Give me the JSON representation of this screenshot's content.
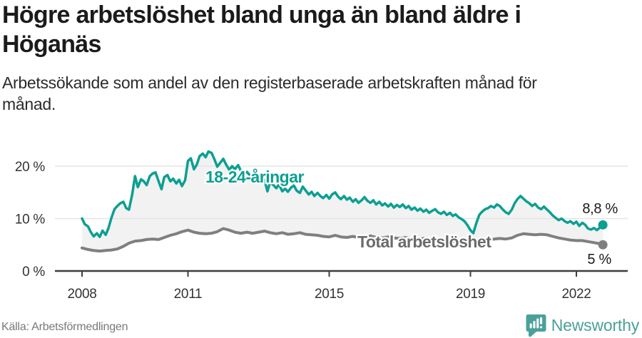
{
  "header": {
    "title_lines": [
      "Högre arbetslöshet bland unga än bland äldre i",
      "Höganäs"
    ],
    "subtitle_lines": [
      "Arbetssökande som andel av den registerbaserade arbetskraften månad för",
      "månad."
    ]
  },
  "footer": {
    "source": "Källa: Arbetsförmedlingen",
    "brand": "Newsworthy"
  },
  "colors": {
    "young_line": "#0c9f92",
    "total_line": "#7f7f7f",
    "total_label": "#6b6b6b",
    "band_fill": "#f2f2f2",
    "grid": "#e5e5e5",
    "axis": "#3d3d3d",
    "tick_text": "#333333",
    "end_label_text": "#1a1a1a",
    "brand_teal": "#4aa09a",
    "background": "#ffffff"
  },
  "chart_data": {
    "type": "line",
    "title": "Högre arbetslöshet bland unga än bland äldre i Höganäs",
    "subtitle": "Arbetssökande som andel av den registerbaserade arbetskraften månad för månad.",
    "x_unit": "decimal_year",
    "xlabel": "",
    "ylabel": "",
    "axis_x_range": [
      2007.2,
      2023.5
    ],
    "ylim": [
      0,
      25.8
    ],
    "grid": "horizontal",
    "legend": "inline-labels",
    "yticks": [
      {
        "value": 0,
        "label": "0 %"
      },
      {
        "value": 10,
        "label": "10 %"
      },
      {
        "value": 20,
        "label": "20 %"
      }
    ],
    "xticks": [
      {
        "value": 2008,
        "label": "2008"
      },
      {
        "value": 2011,
        "label": "2011"
      },
      {
        "value": 2015,
        "label": "2015"
      },
      {
        "value": 2019,
        "label": "2019"
      },
      {
        "value": 2022,
        "label": "2022"
      }
    ],
    "band_between_series": true,
    "series": [
      {
        "name": "18-24-åringar",
        "color": "#0c9f92",
        "end_label": "8,8 %",
        "last_value": 8.8,
        "points": [
          [
            2008.0,
            10.0
          ],
          [
            2008.08,
            8.9
          ],
          [
            2008.17,
            8.5
          ],
          [
            2008.25,
            7.4
          ],
          [
            2008.33,
            6.6
          ],
          [
            2008.42,
            7.2
          ],
          [
            2008.5,
            6.5
          ],
          [
            2008.58,
            7.7
          ],
          [
            2008.67,
            6.9
          ],
          [
            2008.75,
            8.2
          ],
          [
            2008.83,
            10.1
          ],
          [
            2008.92,
            11.8
          ],
          [
            2009.0,
            12.4
          ],
          [
            2009.08,
            12.9
          ],
          [
            2009.17,
            13.2
          ],
          [
            2009.25,
            12.0
          ],
          [
            2009.33,
            11.7
          ],
          [
            2009.42,
            14.6
          ],
          [
            2009.5,
            18.1
          ],
          [
            2009.58,
            16.0
          ],
          [
            2009.67,
            17.5
          ],
          [
            2009.75,
            17.1
          ],
          [
            2009.83,
            16.4
          ],
          [
            2009.92,
            18.1
          ],
          [
            2010.0,
            18.6
          ],
          [
            2010.08,
            18.8
          ],
          [
            2010.17,
            17.1
          ],
          [
            2010.25,
            15.6
          ],
          [
            2010.33,
            17.9
          ],
          [
            2010.42,
            18.3
          ],
          [
            2010.5,
            17.1
          ],
          [
            2010.58,
            17.6
          ],
          [
            2010.67,
            16.7
          ],
          [
            2010.75,
            17.4
          ],
          [
            2010.83,
            16.2
          ],
          [
            2010.92,
            17.3
          ],
          [
            2011.0,
            21.0
          ],
          [
            2011.08,
            21.5
          ],
          [
            2011.17,
            19.4
          ],
          [
            2011.25,
            20.3
          ],
          [
            2011.33,
            21.9
          ],
          [
            2011.42,
            22.4
          ],
          [
            2011.5,
            21.7
          ],
          [
            2011.58,
            22.8
          ],
          [
            2011.67,
            22.5
          ],
          [
            2011.75,
            21.3
          ],
          [
            2011.83,
            19.9
          ],
          [
            2011.92,
            20.7
          ],
          [
            2012.0,
            21.4
          ],
          [
            2012.08,
            20.3
          ],
          [
            2012.17,
            19.3
          ],
          [
            2012.25,
            20.0
          ],
          [
            2012.33,
            19.4
          ],
          [
            2012.42,
            20.2
          ],
          [
            2012.5,
            19.1
          ],
          [
            2012.58,
            18.5
          ],
          [
            2012.67,
            18.9
          ],
          [
            2012.75,
            18.3
          ],
          [
            2012.83,
            17.5
          ],
          [
            2012.92,
            16.9
          ],
          [
            2013.0,
            17.5
          ],
          [
            2013.08,
            17.8
          ],
          [
            2013.17,
            17.3
          ],
          [
            2013.25,
            15.2
          ],
          [
            2013.33,
            17.0
          ],
          [
            2013.42,
            16.4
          ],
          [
            2013.5,
            15.8
          ],
          [
            2013.58,
            16.5
          ],
          [
            2013.67,
            15.2
          ],
          [
            2013.75,
            15.7
          ],
          [
            2013.83,
            15.1
          ],
          [
            2013.92,
            15.9
          ],
          [
            2014.0,
            16.3
          ],
          [
            2014.08,
            15.3
          ],
          [
            2014.17,
            14.9
          ],
          [
            2014.25,
            16.1
          ],
          [
            2014.33,
            15.4
          ],
          [
            2014.42,
            14.6
          ],
          [
            2014.5,
            15.1
          ],
          [
            2014.58,
            14.3
          ],
          [
            2014.67,
            14.9
          ],
          [
            2014.75,
            14.3
          ],
          [
            2014.83,
            13.9
          ],
          [
            2014.92,
            14.5
          ],
          [
            2015.0,
            13.8
          ],
          [
            2015.08,
            14.6
          ],
          [
            2015.17,
            15.0
          ],
          [
            2015.25,
            14.2
          ],
          [
            2015.33,
            13.7
          ],
          [
            2015.42,
            14.3
          ],
          [
            2015.5,
            13.6
          ],
          [
            2015.58,
            14.0
          ],
          [
            2015.67,
            13.2
          ],
          [
            2015.75,
            13.7
          ],
          [
            2015.83,
            13.0
          ],
          [
            2015.92,
            13.5
          ],
          [
            2016.0,
            14.1
          ],
          [
            2016.08,
            13.4
          ],
          [
            2016.17,
            13.0
          ],
          [
            2016.25,
            13.5
          ],
          [
            2016.33,
            12.7
          ],
          [
            2016.42,
            13.2
          ],
          [
            2016.5,
            12.5
          ],
          [
            2016.58,
            12.9
          ],
          [
            2016.67,
            12.3
          ],
          [
            2016.75,
            12.8
          ],
          [
            2016.83,
            12.1
          ],
          [
            2016.92,
            12.6
          ],
          [
            2017.0,
            12.2
          ],
          [
            2017.08,
            12.7
          ],
          [
            2017.17,
            12.0
          ],
          [
            2017.25,
            12.4
          ],
          [
            2017.33,
            11.7
          ],
          [
            2017.42,
            12.1
          ],
          [
            2017.5,
            11.5
          ],
          [
            2017.58,
            11.9
          ],
          [
            2017.67,
            11.3
          ],
          [
            2017.75,
            11.7
          ],
          [
            2017.83,
            11.1
          ],
          [
            2017.92,
            11.5
          ],
          [
            2018.0,
            11.8
          ],
          [
            2018.08,
            11.2
          ],
          [
            2018.17,
            10.9
          ],
          [
            2018.25,
            11.3
          ],
          [
            2018.33,
            10.7
          ],
          [
            2018.42,
            11.1
          ],
          [
            2018.5,
            10.5
          ],
          [
            2018.58,
            10.8
          ],
          [
            2018.67,
            10.2
          ],
          [
            2018.75,
            9.9
          ],
          [
            2018.83,
            9.5
          ],
          [
            2018.92,
            8.7
          ],
          [
            2019.0,
            7.8
          ],
          [
            2019.08,
            7.2
          ],
          [
            2019.17,
            9.2
          ],
          [
            2019.25,
            10.7
          ],
          [
            2019.33,
            11.3
          ],
          [
            2019.42,
            11.8
          ],
          [
            2019.5,
            12.0
          ],
          [
            2019.58,
            12.4
          ],
          [
            2019.67,
            12.1
          ],
          [
            2019.75,
            12.7
          ],
          [
            2019.83,
            12.4
          ],
          [
            2019.92,
            11.7
          ],
          [
            2020.0,
            11.2
          ],
          [
            2020.08,
            10.9
          ],
          [
            2020.17,
            11.7
          ],
          [
            2020.25,
            12.9
          ],
          [
            2020.33,
            13.7
          ],
          [
            2020.42,
            14.3
          ],
          [
            2020.5,
            13.8
          ],
          [
            2020.58,
            13.3
          ],
          [
            2020.67,
            12.9
          ],
          [
            2020.75,
            12.4
          ],
          [
            2020.83,
            12.8
          ],
          [
            2020.92,
            12.1
          ],
          [
            2021.0,
            11.8
          ],
          [
            2021.08,
            12.3
          ],
          [
            2021.17,
            11.7
          ],
          [
            2021.25,
            11.2
          ],
          [
            2021.33,
            10.6
          ],
          [
            2021.42,
            10.1
          ],
          [
            2021.5,
            9.7
          ],
          [
            2021.58,
            10.0
          ],
          [
            2021.67,
            9.5
          ],
          [
            2021.75,
            9.2
          ],
          [
            2021.83,
            9.5
          ],
          [
            2021.92,
            9.0
          ],
          [
            2022.0,
            9.4
          ],
          [
            2022.08,
            8.6
          ],
          [
            2022.17,
            9.2
          ],
          [
            2022.25,
            8.8
          ],
          [
            2022.33,
            8.1
          ],
          [
            2022.42,
            7.9
          ],
          [
            2022.5,
            8.2
          ],
          [
            2022.58,
            7.8
          ],
          [
            2022.67,
            8.3
          ],
          [
            2022.75,
            8.8
          ]
        ]
      },
      {
        "name": "Total arbetslöshet",
        "color": "#7f7f7f",
        "end_label": "5 %",
        "last_value": 5.0,
        "points": [
          [
            2008.0,
            4.4
          ],
          [
            2008.17,
            4.1
          ],
          [
            2008.33,
            3.9
          ],
          [
            2008.5,
            3.8
          ],
          [
            2008.67,
            3.9
          ],
          [
            2008.83,
            4.0
          ],
          [
            2009.0,
            4.2
          ],
          [
            2009.17,
            4.7
          ],
          [
            2009.33,
            5.3
          ],
          [
            2009.5,
            5.7
          ],
          [
            2009.67,
            5.8
          ],
          [
            2009.83,
            6.0
          ],
          [
            2010.0,
            6.1
          ],
          [
            2010.17,
            6.0
          ],
          [
            2010.33,
            6.4
          ],
          [
            2010.5,
            6.8
          ],
          [
            2010.67,
            7.1
          ],
          [
            2010.83,
            7.5
          ],
          [
            2011.0,
            7.8
          ],
          [
            2011.17,
            7.4
          ],
          [
            2011.33,
            7.2
          ],
          [
            2011.5,
            7.1
          ],
          [
            2011.67,
            7.2
          ],
          [
            2011.83,
            7.5
          ],
          [
            2012.0,
            8.1
          ],
          [
            2012.17,
            7.8
          ],
          [
            2012.33,
            7.4
          ],
          [
            2012.5,
            7.2
          ],
          [
            2012.67,
            7.4
          ],
          [
            2012.83,
            7.2
          ],
          [
            2013.0,
            7.4
          ],
          [
            2013.17,
            7.6
          ],
          [
            2013.33,
            7.3
          ],
          [
            2013.5,
            7.1
          ],
          [
            2013.67,
            7.3
          ],
          [
            2013.83,
            7.0
          ],
          [
            2014.0,
            7.1
          ],
          [
            2014.17,
            7.3
          ],
          [
            2014.33,
            7.0
          ],
          [
            2014.5,
            6.9
          ],
          [
            2014.67,
            6.8
          ],
          [
            2014.83,
            6.6
          ],
          [
            2015.0,
            6.5
          ],
          [
            2015.17,
            6.8
          ],
          [
            2015.33,
            6.5
          ],
          [
            2015.5,
            6.4
          ],
          [
            2015.67,
            6.6
          ],
          [
            2015.83,
            6.4
          ],
          [
            2016.0,
            6.5
          ],
          [
            2016.17,
            6.7
          ],
          [
            2016.33,
            6.4
          ],
          [
            2016.5,
            6.3
          ],
          [
            2016.67,
            6.5
          ],
          [
            2016.83,
            6.3
          ],
          [
            2017.0,
            6.2
          ],
          [
            2017.17,
            6.4
          ],
          [
            2017.33,
            6.1
          ],
          [
            2017.5,
            6.0
          ],
          [
            2017.67,
            6.2
          ],
          [
            2017.83,
            6.0
          ],
          [
            2018.0,
            5.9
          ],
          [
            2018.17,
            6.0
          ],
          [
            2018.33,
            5.8
          ],
          [
            2018.5,
            5.6
          ],
          [
            2018.67,
            5.7
          ],
          [
            2018.83,
            5.5
          ],
          [
            2019.0,
            5.3
          ],
          [
            2019.17,
            5.4
          ],
          [
            2019.33,
            5.7
          ],
          [
            2019.5,
            5.9
          ],
          [
            2019.67,
            6.1
          ],
          [
            2019.83,
            6.2
          ],
          [
            2020.0,
            6.1
          ],
          [
            2020.17,
            6.3
          ],
          [
            2020.33,
            6.8
          ],
          [
            2020.5,
            7.1
          ],
          [
            2020.67,
            7.0
          ],
          [
            2020.83,
            6.9
          ],
          [
            2021.0,
            7.0
          ],
          [
            2021.17,
            6.9
          ],
          [
            2021.33,
            6.6
          ],
          [
            2021.5,
            6.3
          ],
          [
            2021.67,
            6.1
          ],
          [
            2021.83,
            5.9
          ],
          [
            2022.0,
            5.8
          ],
          [
            2022.17,
            5.8
          ],
          [
            2022.33,
            5.6
          ],
          [
            2022.5,
            5.4
          ],
          [
            2022.67,
            5.2
          ],
          [
            2022.75,
            5.0
          ]
        ]
      }
    ]
  }
}
